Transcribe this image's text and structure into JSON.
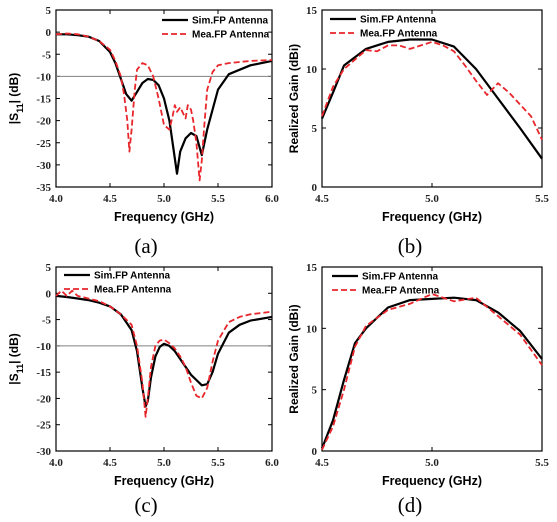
{
  "figure": {
    "captions": [
      "(a)",
      "(b)",
      "(c)",
      "(d)"
    ]
  },
  "colors": {
    "simulated": "#000000",
    "measured": "#e8262b",
    "reference": "#7f7f7f"
  },
  "chart_data": [
    {
      "panel": "(a)",
      "type": "line",
      "xlabel": "Frequency (GHz)",
      "ylabel": "|S11| (dB)",
      "ylabel_main": "|S",
      "ylabel_sub": "11",
      "ylabel_tail": "| (dB)",
      "xlim": [
        4.0,
        6.0
      ],
      "ylim": [
        -35,
        5
      ],
      "xticks": [
        4.0,
        4.5,
        5.0,
        5.5,
        6.0
      ],
      "xtick_labels": [
        "4.0",
        "4.5",
        "5.0",
        "5.5",
        "6.0"
      ],
      "yticks": [
        5,
        0,
        -5,
        -10,
        -15,
        -20,
        -25,
        -30,
        -35
      ],
      "ytick_labels": [
        "5",
        "0",
        "-5",
        "-10",
        "-15",
        "-20",
        "-25",
        "-30",
        "-35"
      ],
      "reference_line": -10,
      "legend_position": "top-right",
      "series": [
        {
          "name": "Sim.FP Antenna",
          "style": "solid",
          "x": [
            4.0,
            4.1,
            4.2,
            4.3,
            4.4,
            4.5,
            4.55,
            4.6,
            4.65,
            4.7,
            4.75,
            4.8,
            4.85,
            4.9,
            4.95,
            5.0,
            5.05,
            5.08,
            5.12,
            5.15,
            5.2,
            5.25,
            5.3,
            5.35,
            5.4,
            5.5,
            5.6,
            5.8,
            6.0
          ],
          "y": [
            -0.5,
            -0.5,
            -0.7,
            -1.0,
            -2.0,
            -4.5,
            -7.0,
            -10.5,
            -14.0,
            -15.5,
            -13.5,
            -11.5,
            -10.6,
            -10.8,
            -12.0,
            -15.0,
            -20.0,
            -25.0,
            -32.0,
            -27.0,
            -24.0,
            -22.8,
            -23.5,
            -27.8,
            -22.0,
            -13.0,
            -9.5,
            -7.5,
            -6.5
          ]
        },
        {
          "name": "Mea.FP Antenna",
          "style": "dashed",
          "x": [
            4.0,
            4.1,
            4.2,
            4.3,
            4.4,
            4.5,
            4.55,
            4.6,
            4.63,
            4.66,
            4.68,
            4.7,
            4.73,
            4.75,
            4.8,
            4.85,
            4.9,
            4.95,
            5.0,
            5.05,
            5.08,
            5.1,
            5.12,
            5.15,
            5.2,
            5.22,
            5.25,
            5.27,
            5.3,
            5.33,
            5.35,
            5.37,
            5.4,
            5.45,
            5.5,
            5.6,
            5.8,
            6.0
          ],
          "y": [
            -0.5,
            -0.3,
            -0.5,
            -1.0,
            -2.0,
            -4.0,
            -6.5,
            -10.0,
            -14.0,
            -20.0,
            -27.0,
            -22.0,
            -13.0,
            -8.5,
            -7.0,
            -7.5,
            -10.0,
            -15.0,
            -21.0,
            -22.0,
            -19.0,
            -16.5,
            -18.0,
            -17.0,
            -19.5,
            -16.5,
            -17.5,
            -20.0,
            -25.0,
            -33.5,
            -29.0,
            -22.0,
            -13.0,
            -9.0,
            -7.5,
            -7.0,
            -6.5,
            -6.3
          ]
        }
      ]
    },
    {
      "panel": "(b)",
      "type": "line",
      "xlabel": "Frequency (GHz)",
      "ylabel": "Realized Gain (dBi)",
      "xlim": [
        4.5,
        5.5
      ],
      "ylim": [
        0,
        15
      ],
      "xticks": [
        4.5,
        5.0,
        5.5
      ],
      "xtick_labels": [
        "4.5",
        "5.0",
        "5.5"
      ],
      "yticks": [
        0,
        5,
        10,
        15
      ],
      "ytick_labels": [
        "0",
        "5",
        "10",
        "15"
      ],
      "legend_position": "top-left",
      "series": [
        {
          "name": "Sim.FP Antenna",
          "style": "solid",
          "x": [
            4.5,
            4.55,
            4.6,
            4.7,
            4.8,
            4.9,
            5.0,
            5.1,
            5.2,
            5.3,
            5.4,
            5.5
          ],
          "y": [
            5.8,
            8.0,
            10.3,
            11.7,
            12.3,
            12.5,
            12.5,
            11.9,
            10.0,
            7.5,
            5.0,
            2.4
          ]
        },
        {
          "name": "Mea.FP Antenna",
          "style": "dashed",
          "x": [
            4.5,
            4.55,
            4.6,
            4.65,
            4.7,
            4.75,
            4.8,
            4.85,
            4.9,
            4.95,
            5.0,
            5.05,
            5.1,
            5.15,
            5.2,
            5.25,
            5.3,
            5.35,
            5.4,
            5.45,
            5.5
          ],
          "y": [
            6.0,
            8.5,
            10.0,
            10.8,
            11.6,
            11.5,
            12.0,
            12.0,
            11.7,
            12.0,
            12.3,
            12.0,
            11.5,
            10.3,
            9.0,
            7.8,
            8.8,
            8.0,
            7.0,
            6.0,
            4.0
          ]
        }
      ]
    },
    {
      "panel": "(c)",
      "type": "line",
      "xlabel": "Frequency (GHz)",
      "ylabel": "|S11| (dB)",
      "ylabel_main": "|S",
      "ylabel_sub": "11",
      "ylabel_tail": "| (dB)",
      "xlim": [
        4.0,
        6.0
      ],
      "ylim": [
        -30,
        5
      ],
      "xticks": [
        4.0,
        4.5,
        5.0,
        5.5,
        6.0
      ],
      "xtick_labels": [
        "4.0",
        "4.5",
        "5.0",
        "5.5",
        "6.0"
      ],
      "yticks": [
        5,
        0,
        -5,
        -10,
        -15,
        -20,
        -25,
        -30
      ],
      "ytick_labels": [
        "5",
        "0",
        "-5",
        "-10",
        "-15",
        "-20",
        "-25",
        "-30"
      ],
      "reference_line": -10,
      "legend_position": "top-left",
      "series": [
        {
          "name": "Sim.FP Antenna",
          "style": "solid",
          "x": [
            4.0,
            4.1,
            4.2,
            4.3,
            4.4,
            4.5,
            4.6,
            4.7,
            4.75,
            4.8,
            4.83,
            4.85,
            4.88,
            4.92,
            4.96,
            5.0,
            5.05,
            5.1,
            5.15,
            5.2,
            5.25,
            5.3,
            5.35,
            5.4,
            5.45,
            5.5,
            5.6,
            5.7,
            5.8,
            6.0
          ],
          "y": [
            -0.5,
            -0.7,
            -1.0,
            -1.3,
            -1.8,
            -2.5,
            -4.0,
            -7.0,
            -11.0,
            -18.0,
            -21.5,
            -20.5,
            -16.0,
            -12.0,
            -10.2,
            -9.6,
            -10.0,
            -11.0,
            -12.5,
            -14.0,
            -15.5,
            -16.5,
            -17.5,
            -17.3,
            -15.0,
            -11.5,
            -7.5,
            -6.0,
            -5.2,
            -4.5
          ]
        },
        {
          "name": "Mea.FP Antenna",
          "style": "dashed",
          "x": [
            4.0,
            4.05,
            4.1,
            4.15,
            4.2,
            4.3,
            4.4,
            4.5,
            4.6,
            4.7,
            4.75,
            4.8,
            4.83,
            4.85,
            4.88,
            4.92,
            4.96,
            5.0,
            5.05,
            5.1,
            5.15,
            5.2,
            5.25,
            5.3,
            5.35,
            5.4,
            5.45,
            5.5,
            5.6,
            5.7,
            5.8,
            6.0
          ],
          "y": [
            -0.5,
            0.5,
            -0.5,
            0.5,
            -0.5,
            -1.0,
            -1.5,
            -2.5,
            -4.0,
            -6.0,
            -10.0,
            -17.0,
            -23.5,
            -20.0,
            -14.0,
            -10.0,
            -9.0,
            -8.8,
            -9.5,
            -10.5,
            -12.0,
            -14.0,
            -17.0,
            -19.5,
            -20.0,
            -18.0,
            -13.0,
            -9.0,
            -5.5,
            -4.5,
            -4.0,
            -3.5
          ]
        }
      ]
    },
    {
      "panel": "(d)",
      "type": "line",
      "xlabel": "Frequency (GHz)",
      "ylabel": "Realized Gain (dBi)",
      "xlim": [
        4.5,
        5.5
      ],
      "ylim": [
        0,
        15
      ],
      "xticks": [
        4.5,
        5.0,
        5.5
      ],
      "xtick_labels": [
        "4.5",
        "5.0",
        "5.5"
      ],
      "yticks": [
        0,
        5,
        10,
        15
      ],
      "ytick_labels": [
        "0",
        "5",
        "10",
        "15"
      ],
      "legend_position": "top-left",
      "series": [
        {
          "name": "Sim.FP Antenna",
          "style": "solid",
          "x": [
            4.5,
            4.55,
            4.6,
            4.65,
            4.7,
            4.8,
            4.9,
            5.0,
            5.1,
            5.2,
            5.3,
            5.4,
            5.5
          ],
          "y": [
            0.2,
            2.5,
            5.8,
            8.8,
            10.0,
            11.7,
            12.3,
            12.4,
            12.5,
            12.3,
            11.3,
            9.8,
            7.5
          ]
        },
        {
          "name": "Mea.FP Antenna",
          "style": "dashed",
          "x": [
            4.5,
            4.55,
            4.6,
            4.65,
            4.7,
            4.8,
            4.9,
            5.0,
            5.1,
            5.2,
            5.3,
            5.4,
            5.5
          ],
          "y": [
            0.1,
            2.0,
            5.0,
            8.5,
            10.2,
            11.5,
            12.0,
            12.8,
            12.2,
            12.5,
            11.0,
            9.5,
            7.0
          ]
        }
      ]
    }
  ]
}
